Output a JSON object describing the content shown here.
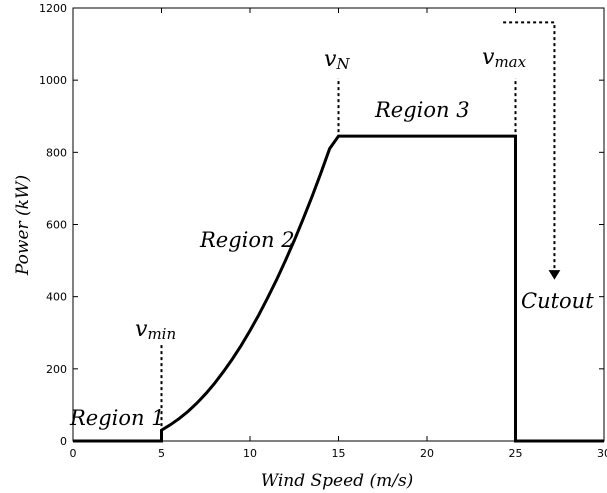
{
  "chart_data": {
    "type": "line",
    "title": "",
    "xlabel": "Wind Speed (m/s)",
    "ylabel": "Power (kW)",
    "xlim": [
      0,
      30
    ],
    "ylim": [
      0,
      1200
    ],
    "xticks": [
      "0",
      "5",
      "10",
      "15",
      "20",
      "25",
      "30"
    ],
    "yticks": [
      "0",
      "200",
      "400",
      "600",
      "800",
      "1000",
      "1200"
    ],
    "grid": false,
    "legend": "none",
    "line_color": "#000000",
    "series": [
      {
        "x": [
          0,
          5,
          5,
          5.5,
          6,
          6.5,
          7,
          7.5,
          8,
          8.5,
          9,
          9.5,
          10,
          10.5,
          11,
          11.5,
          12,
          12.5,
          13,
          13.5,
          14,
          14.5,
          15,
          20,
          25,
          25,
          27,
          30
        ],
        "y": [
          0,
          0,
          30,
          45,
          62,
          82,
          105,
          131,
          160,
          192,
          227,
          265,
          306,
          350,
          397,
          447,
          500,
          556,
          615,
          677,
          742,
          810,
          845,
          845,
          845,
          0,
          0,
          0
        ]
      }
    ],
    "annotations": {
      "region1": "Region 1",
      "region2": "Region 2",
      "region3": "Region 3",
      "cutout": "Cutout",
      "vmin": {
        "base": "v",
        "sub": "min",
        "x": 5
      },
      "vN": {
        "base": "v",
        "sub": "N",
        "x": 15
      },
      "vmax": {
        "base": "v",
        "sub": "max",
        "x": 25
      },
      "cutout_arrow": {
        "x_start": 24.3,
        "x_end": 27.2,
        "y_top": 1160,
        "y_end": 450
      }
    }
  }
}
